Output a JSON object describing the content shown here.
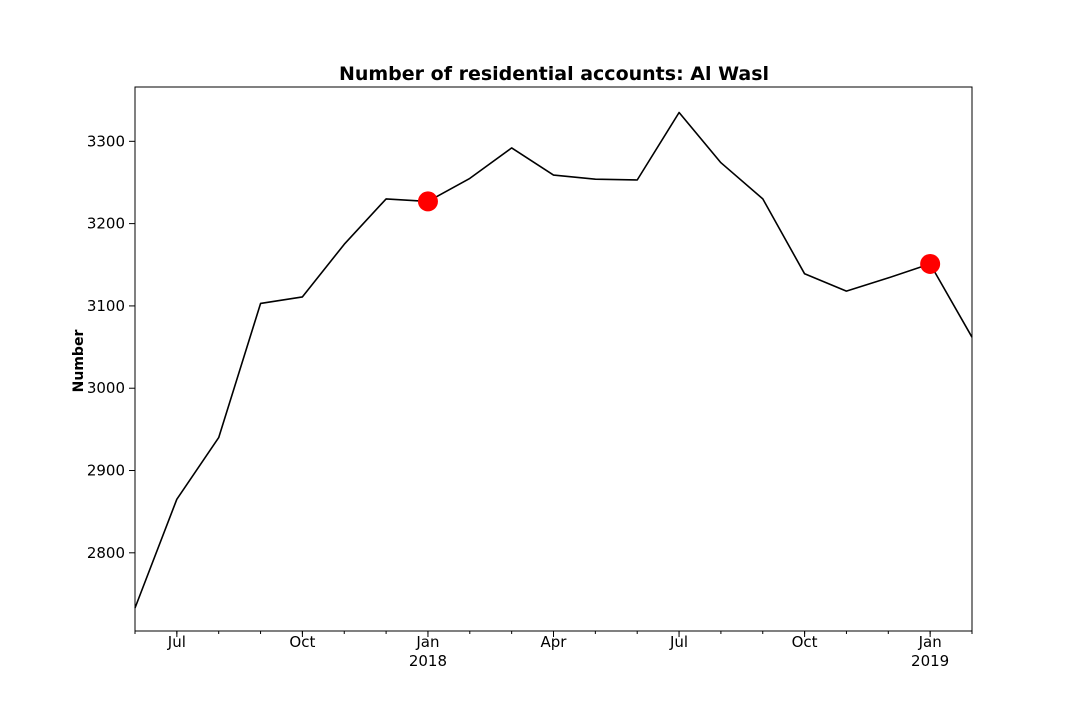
{
  "chart_data": {
    "type": "line",
    "title": "Number of residential accounts: Al Wasl",
    "xlabel": "",
    "ylabel": "Number",
    "x": [
      "2017-06",
      "2017-07",
      "2017-08",
      "2017-09",
      "2017-10",
      "2017-11",
      "2017-12",
      "2018-01",
      "2018-02",
      "2018-03",
      "2018-04",
      "2018-05",
      "2018-06",
      "2018-07",
      "2018-08",
      "2018-09",
      "2018-10",
      "2018-11",
      "2018-12",
      "2019-01",
      "2019-02"
    ],
    "series": [
      {
        "color": "#000000",
        "values": [
          2733,
          2865,
          2940,
          3103,
          3111,
          3175,
          3230,
          3227,
          3255,
          3292,
          3259,
          3254,
          3253,
          3335,
          3274,
          3230,
          3139,
          3118,
          3134,
          3151,
          3062
        ]
      }
    ],
    "highlighted_points": [
      {
        "x": "2018-01",
        "y": 3227,
        "color": "#ff0000"
      },
      {
        "x": "2019-01",
        "y": 3151,
        "color": "#ff0000"
      }
    ],
    "ylim": [
      2705,
      3366
    ],
    "yticks": [
      2800,
      2900,
      3000,
      3100,
      3200,
      3300
    ],
    "xticks": [
      {
        "x": "2017-07",
        "label": "Jul",
        "sublabel": ""
      },
      {
        "x": "2017-10",
        "label": "Oct",
        "sublabel": ""
      },
      {
        "x": "2018-01",
        "label": "Jan",
        "sublabel": "2018"
      },
      {
        "x": "2018-04",
        "label": "Apr",
        "sublabel": ""
      },
      {
        "x": "2018-07",
        "label": "Jul",
        "sublabel": ""
      },
      {
        "x": "2018-10",
        "label": "Oct",
        "sublabel": ""
      },
      {
        "x": "2019-01",
        "label": "Jan",
        "sublabel": "2019"
      }
    ],
    "minor_ticks": "monthly",
    "grid": false,
    "legend": "none"
  }
}
